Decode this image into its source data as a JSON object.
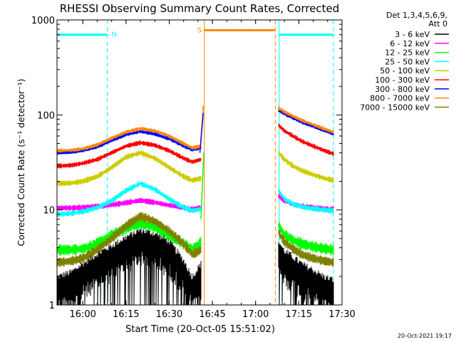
{
  "chart_data": {
    "type": "line",
    "title": "RHESSI Observing Summary Count Rates, Corrected",
    "xlabel": "Start Time (20-Oct-05 15:51:02)",
    "ylabel": "Corrected Count Rate (s⁻¹ detector⁻¹)",
    "xlim": [
      "15:51:02",
      "17:30"
    ],
    "ylim": [
      1,
      1000
    ],
    "yscale": "log",
    "x_ticks": [
      "16:00",
      "16:15",
      "16:30",
      "16:45",
      "17:00",
      "17:15",
      "17:30"
    ],
    "y_ticks": [
      "1",
      "10",
      "100",
      "1000"
    ],
    "legend_header": [
      "Det 1,3,4,5,6,9,",
      "Att 0"
    ],
    "legend_position": "right",
    "time_ref": "15:51:02",
    "series": [
      {
        "name": "3 - 6 keV",
        "color": "#000000",
        "a": {
          "x": [
            "15:51",
            "15:56",
            "16:00",
            "16:05",
            "16:10",
            "16:15",
            "16:20",
            "16:25",
            "16:30",
            "16:35",
            "16:38",
            "16:41"
          ],
          "y": [
            1.6,
            1.8,
            2.2,
            2.8,
            3.4,
            4.2,
            5.0,
            4.6,
            3.8,
            2.4,
            1.6,
            2.2
          ]
        },
        "b": {
          "x": [
            "17:08",
            "17:10",
            "17:13",
            "17:16",
            "17:20",
            "17:24",
            "17:27"
          ],
          "y": [
            3.8,
            3.0,
            2.6,
            2.2,
            1.9,
            1.6,
            1.5
          ]
        }
      },
      {
        "name": "6 - 12 keV",
        "color": "#ff00ff",
        "a": {
          "x": [
            "15:51",
            "15:56",
            "16:00",
            "16:05",
            "16:10",
            "16:15",
            "16:20",
            "16:25",
            "16:30",
            "16:35",
            "16:38",
            "16:41"
          ],
          "y": [
            10.5,
            10.5,
            10.6,
            10.9,
            11.3,
            11.9,
            12.6,
            12.0,
            11.2,
            10.6,
            10.2,
            10.6
          ]
        },
        "b": {
          "x": [
            "17:08",
            "17:10",
            "17:13",
            "17:16",
            "17:20",
            "17:24",
            "17:27"
          ],
          "y": [
            14.0,
            12.5,
            11.4,
            11.0,
            10.6,
            10.3,
            10.2
          ]
        }
      },
      {
        "name": "12 - 25 keV",
        "color": "#00ff00",
        "a": {
          "x": [
            "15:51",
            "15:56",
            "16:00",
            "16:05",
            "16:10",
            "16:15",
            "16:20",
            "16:25",
            "16:30",
            "16:35",
            "16:38",
            "16:41"
          ],
          "y": [
            3.8,
            3.8,
            3.9,
            4.4,
            5.4,
            6.4,
            7.2,
            6.6,
            5.4,
            4.4,
            3.8,
            4.6
          ]
        },
        "b": {
          "x": [
            "17:08",
            "17:10",
            "17:13",
            "17:16",
            "17:20",
            "17:24",
            "17:27"
          ],
          "y": [
            6.8,
            5.5,
            4.8,
            4.4,
            4.1,
            3.9,
            3.8
          ]
        }
      },
      {
        "name": "25 - 50 keV",
        "color": "#00ffff",
        "a": {
          "x": [
            "15:51",
            "15:56",
            "16:00",
            "16:05",
            "16:10",
            "16:15",
            "16:20",
            "16:25",
            "16:30",
            "16:35",
            "16:38",
            "16:41"
          ],
          "y": [
            9.0,
            9.2,
            9.6,
            10.6,
            12.5,
            16.0,
            19.0,
            16.5,
            13.0,
            10.6,
            9.8,
            10.2
          ]
        },
        "b": {
          "x": [
            "17:08",
            "17:10",
            "17:13",
            "17:16",
            "17:20",
            "17:24",
            "17:27"
          ],
          "y": [
            16.0,
            13.0,
            11.5,
            10.8,
            10.3,
            10.0,
            9.8
          ]
        }
      },
      {
        "name": "50 - 100 keV",
        "color": "#cccc00",
        "a": {
          "x": [
            "15:51",
            "15:56",
            "16:00",
            "16:05",
            "16:10",
            "16:15",
            "16:20",
            "16:25",
            "16:30",
            "16:35",
            "16:38",
            "16:41"
          ],
          "y": [
            19.0,
            19.2,
            20.0,
            22.5,
            28.0,
            36.0,
            40.0,
            35.0,
            28.0,
            22.5,
            20.5,
            21.5
          ]
        },
        "b": {
          "x": [
            "17:08",
            "17:10",
            "17:13",
            "17:16",
            "17:20",
            "17:24",
            "17:27"
          ],
          "y": [
            40.0,
            34.0,
            29.0,
            26.0,
            23.5,
            21.5,
            20.5
          ]
        }
      },
      {
        "name": "100 - 300 keV",
        "color": "#ff0000",
        "a": {
          "x": [
            "15:51",
            "15:56",
            "16:00",
            "16:05",
            "16:10",
            "16:15",
            "16:20",
            "16:25",
            "16:30",
            "16:35",
            "16:38",
            "16:41"
          ],
          "y": [
            29.0,
            29.5,
            31.0,
            34.0,
            40.0,
            47.0,
            51.0,
            48.0,
            42.0,
            35.0,
            32.0,
            34.0
          ]
        },
        "b": {
          "x": [
            "17:08",
            "17:10",
            "17:13",
            "17:16",
            "17:20",
            "17:24",
            "17:27"
          ],
          "y": [
            78.0,
            68.0,
            60.0,
            53.0,
            47.0,
            42.0,
            39.0
          ]
        }
      },
      {
        "name": "300 - 800 keV",
        "color": "#0000ff",
        "a": {
          "x": [
            "15:51",
            "15:56",
            "16:00",
            "16:05",
            "16:10",
            "16:15",
            "16:20",
            "16:25",
            "16:30",
            "16:35",
            "16:38",
            "16:41"
          ],
          "y": [
            40.0,
            40.5,
            42.0,
            46.0,
            54.0,
            62.0,
            67.0,
            63.0,
            56.0,
            47.0,
            43.0,
            45.0
          ]
        },
        "b": {
          "x": [
            "17:08",
            "17:10",
            "17:13",
            "17:16",
            "17:20",
            "17:24",
            "17:27"
          ],
          "y": [
            112.0,
            103.0,
            93.0,
            84.0,
            76.0,
            68.0,
            63.0
          ]
        }
      },
      {
        "name": "800 - 7000 keV",
        "color": "#ff8800",
        "a": {
          "x": [
            "15:51",
            "15:56",
            "16:00",
            "16:05",
            "16:10",
            "16:15",
            "16:20",
            "16:25",
            "16:30",
            "16:35",
            "16:38",
            "16:41"
          ],
          "y": [
            42.0,
            42.5,
            44.0,
            48.5,
            57.0,
            66.0,
            72.0,
            68.0,
            60.0,
            50.0,
            45.0,
            47.0
          ]
        },
        "b": {
          "x": [
            "17:08",
            "17:10",
            "17:13",
            "17:16",
            "17:20",
            "17:24",
            "17:27"
          ],
          "y": [
            118.0,
            108.0,
            97.0,
            88.0,
            79.0,
            71.0,
            66.0
          ]
        }
      },
      {
        "name": "7000 - 15000 keV",
        "color": "#808000",
        "a": {
          "x": [
            "15:51",
            "15:56",
            "16:00",
            "16:05",
            "16:10",
            "16:15",
            "16:20",
            "16:25",
            "16:30",
            "16:35",
            "16:38",
            "16:41"
          ],
          "y": [
            2.8,
            2.9,
            3.1,
            3.8,
            5.0,
            6.8,
            8.6,
            7.6,
            6.0,
            4.4,
            3.4,
            3.8
          ]
        },
        "b": {
          "x": [
            "17:08",
            "17:10",
            "17:13",
            "17:16",
            "17:20",
            "17:24",
            "17:27"
          ],
          "y": [
            5.8,
            4.6,
            3.9,
            3.4,
            3.1,
            2.9,
            2.8
          ]
        }
      }
    ],
    "spikes": [
      {
        "color": "#ff8800",
        "x": [
          "16:40:40",
          "16:41:50"
        ],
        "y": [
          42,
          125
        ]
      },
      {
        "color": "#0000ff",
        "x": [
          "16:40:40",
          "16:41:50"
        ],
        "y": [
          40,
          105
        ]
      },
      {
        "color": "#00ff00",
        "x": [
          "16:41:00",
          "16:42:00"
        ],
        "y": [
          8,
          40
        ]
      }
    ],
    "markers": [
      {
        "label": "N",
        "color": "#00ffff",
        "band": [
          "15:51:02",
          "16:08:30"
        ],
        "line_y": 700,
        "lines": [
          {
            "x": "15:51:02",
            "style": "solid"
          },
          {
            "x": "16:08:30",
            "style": "dashed"
          }
        ]
      },
      {
        "label": "S",
        "color": "#ff8800",
        "band": [
          "16:42:10",
          "17:06:50"
        ],
        "line_y": 780,
        "lines": [
          {
            "x": "16:42:10",
            "style": "solid"
          },
          {
            "x": "17:06:50",
            "style": "dashed"
          }
        ]
      },
      {
        "label": "",
        "color": "#00ffff",
        "band": [
          "17:08:10",
          "17:27:00"
        ],
        "line_y": 700,
        "lines": [
          {
            "x": "17:08:10",
            "style": "solid"
          },
          {
            "x": "17:27:00",
            "style": "dashed"
          }
        ]
      }
    ]
  },
  "footer": {
    "timestamp": "20-Oct-2021 19:17"
  }
}
